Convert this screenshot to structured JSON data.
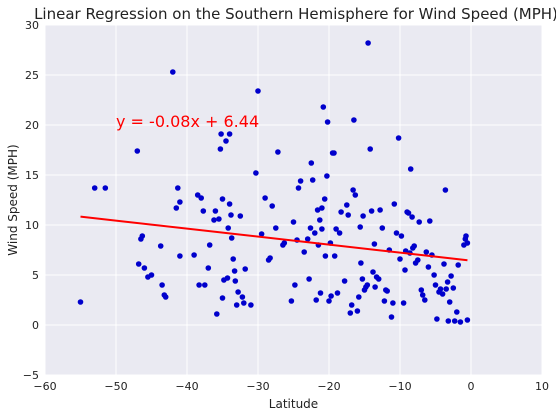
{
  "chart_data": {
    "type": "scatter",
    "title": "Linear Regression on the Southern Hemisphere for Wind Speed (MPH)",
    "xlabel": "Latitude",
    "ylabel": "Wind Speed (MPH)",
    "xlim": [
      -60,
      10
    ],
    "ylim": [
      -5,
      30
    ],
    "xticks": [
      -60,
      -50,
      -40,
      -30,
      -20,
      -10,
      0,
      10
    ],
    "yticks": [
      -5,
      0,
      5,
      10,
      15,
      20,
      25,
      30
    ],
    "grid": true,
    "background": "#EAEAF2",
    "point_color": "#0000CC",
    "line_color": "#FF0000",
    "annotation": {
      "text": "y = -0.08x + 6.44",
      "x": -50,
      "y": 20,
      "color": "#FF0000"
    },
    "regression": {
      "slope": -0.08,
      "intercept": 6.44,
      "x_range": [
        -55,
        -0.5
      ]
    },
    "points": [
      [
        -55,
        2.3
      ],
      [
        -53,
        13.7
      ],
      [
        -51.5,
        13.7
      ],
      [
        -47,
        17.4
      ],
      [
        -46.8,
        6.1
      ],
      [
        -46.5,
        8.6
      ],
      [
        -46.3,
        8.9
      ],
      [
        -46,
        5.7
      ],
      [
        -45.5,
        4.8
      ],
      [
        -45,
        5
      ],
      [
        -43.7,
        7.9
      ],
      [
        -43.5,
        4
      ],
      [
        -43.2,
        3
      ],
      [
        -43,
        2.8
      ],
      [
        -42,
        25.3
      ],
      [
        -41.5,
        11.7
      ],
      [
        -41.3,
        13.7
      ],
      [
        -41,
        12.3
      ],
      [
        -41,
        6.9
      ],
      [
        -39,
        7
      ],
      [
        -38.5,
        13
      ],
      [
        -38.3,
        4
      ],
      [
        -38,
        12.7
      ],
      [
        -37.7,
        11.4
      ],
      [
        -37.5,
        4
      ],
      [
        -37,
        5.7
      ],
      [
        -36.8,
        8
      ],
      [
        -36.2,
        10.5
      ],
      [
        -36,
        11.4
      ],
      [
        -35.8,
        1.1
      ],
      [
        -35.5,
        10.6
      ],
      [
        -35.3,
        17.6
      ],
      [
        -35.2,
        19.1
      ],
      [
        -35,
        12.6
      ],
      [
        -35,
        2.7
      ],
      [
        -34.8,
        4.5
      ],
      [
        -34.5,
        18.4
      ],
      [
        -34.3,
        4.7
      ],
      [
        -34.2,
        9.7
      ],
      [
        -34,
        19.1
      ],
      [
        -34,
        12.1
      ],
      [
        -33.8,
        11
      ],
      [
        -33.7,
        8.7
      ],
      [
        -33.5,
        6.6
      ],
      [
        -33.3,
        5.4
      ],
      [
        -33.2,
        4.4
      ],
      [
        -33,
        2
      ],
      [
        -32.8,
        3.3
      ],
      [
        -32.5,
        10.9
      ],
      [
        -32.2,
        2.8
      ],
      [
        -32,
        2.2
      ],
      [
        -31.8,
        5.6
      ],
      [
        -31,
        2
      ],
      [
        -30.3,
        15.2
      ],
      [
        -30,
        23.4
      ],
      [
        -29.5,
        9.1
      ],
      [
        -29,
        12.7
      ],
      [
        -28.5,
        6.5
      ],
      [
        -28.3,
        6.7
      ],
      [
        -28,
        11.9
      ],
      [
        -27.5,
        9.7
      ],
      [
        -27.2,
        17.3
      ],
      [
        -26.5,
        8
      ],
      [
        -26.3,
        8.2
      ],
      [
        -25.3,
        2.4
      ],
      [
        -25,
        10.3
      ],
      [
        -24.8,
        4
      ],
      [
        -24.5,
        8.5
      ],
      [
        -24.3,
        13.7
      ],
      [
        -24,
        14.4
      ],
      [
        -23.5,
        7.3
      ],
      [
        -23,
        8.6
      ],
      [
        -22.8,
        4.6
      ],
      [
        -22.6,
        9.7
      ],
      [
        -22.5,
        16.2
      ],
      [
        -22.3,
        14.5
      ],
      [
        -22,
        9.2
      ],
      [
        -21.8,
        2.5
      ],
      [
        -21.6,
        11.5
      ],
      [
        -21.5,
        8
      ],
      [
        -21.3,
        10.5
      ],
      [
        -21.2,
        3.2
      ],
      [
        -21,
        11.7
      ],
      [
        -21,
        9.6
      ],
      [
        -20.8,
        21.8
      ],
      [
        -20.6,
        12.6
      ],
      [
        -20.5,
        6.9
      ],
      [
        -20.3,
        14.9
      ],
      [
        -20.2,
        20.3
      ],
      [
        -20,
        2.4
      ],
      [
        -19.8,
        8.2
      ],
      [
        -19.7,
        2.9
      ],
      [
        -19.5,
        17.2
      ],
      [
        -19.3,
        17.2
      ],
      [
        -19.2,
        6.9
      ],
      [
        -19,
        9.6
      ],
      [
        -18.8,
        3.2
      ],
      [
        -18.5,
        9.2
      ],
      [
        -18.3,
        11.3
      ],
      [
        -17.8,
        4.4
      ],
      [
        -17.5,
        12
      ],
      [
        -17.3,
        11
      ],
      [
        -17,
        1.2
      ],
      [
        -16.8,
        2
      ],
      [
        -16.6,
        13.5
      ],
      [
        -16.5,
        20.5
      ],
      [
        -16.3,
        13
      ],
      [
        -16,
        1.4
      ],
      [
        -15.8,
        2.8
      ],
      [
        -15.6,
        9.8
      ],
      [
        -15.5,
        6.2
      ],
      [
        -15.3,
        4.6
      ],
      [
        -15.2,
        10.9
      ],
      [
        -15,
        3.5
      ],
      [
        -14.8,
        3.8
      ],
      [
        -14.6,
        4
      ],
      [
        -14.5,
        28.2
      ],
      [
        -14.2,
        17.6
      ],
      [
        -14,
        11.4
      ],
      [
        -13.8,
        5.3
      ],
      [
        -13.6,
        8.1
      ],
      [
        -13.5,
        3.8
      ],
      [
        -13.3,
        4.8
      ],
      [
        -13,
        4.6
      ],
      [
        -12.8,
        11.5
      ],
      [
        -12.5,
        9.7
      ],
      [
        -12.2,
        2.4
      ],
      [
        -12,
        3.5
      ],
      [
        -11.8,
        3.4
      ],
      [
        -11.5,
        7.5
      ],
      [
        -11.2,
        0.8
      ],
      [
        -11,
        2.2
      ],
      [
        -10.8,
        12.1
      ],
      [
        -10.5,
        9.2
      ],
      [
        -10.2,
        18.7
      ],
      [
        -10,
        6.6
      ],
      [
        -9.8,
        8.9
      ],
      [
        -9.5,
        2.2
      ],
      [
        -9.3,
        5.5
      ],
      [
        -9.2,
        7.4
      ],
      [
        -9,
        11.3
      ],
      [
        -8.8,
        11.2
      ],
      [
        -8.6,
        7.2
      ],
      [
        -8.5,
        15.6
      ],
      [
        -8.3,
        10.8
      ],
      [
        -8.2,
        7.7
      ],
      [
        -8,
        7.9
      ],
      [
        -7.8,
        6.2
      ],
      [
        -7.5,
        6.5
      ],
      [
        -7.3,
        10.3
      ],
      [
        -7,
        3.5
      ],
      [
        -6.8,
        3
      ],
      [
        -6.5,
        2.5
      ],
      [
        -6.3,
        7.3
      ],
      [
        -6,
        5.8
      ],
      [
        -5.8,
        10.4
      ],
      [
        -5.5,
        7
      ],
      [
        -5.2,
        5
      ],
      [
        -5,
        4
      ],
      [
        -4.8,
        0.6
      ],
      [
        -4.5,
        3.3
      ],
      [
        -4.3,
        3.6
      ],
      [
        -4,
        3.1
      ],
      [
        -3.8,
        6.1
      ],
      [
        -3.6,
        13.5
      ],
      [
        -3.5,
        3.6
      ],
      [
        -3.3,
        4.3
      ],
      [
        -3,
        2.3
      ],
      [
        -2.8,
        4.9
      ],
      [
        -2.5,
        3.7
      ],
      [
        -2.3,
        0.4
      ],
      [
        -2,
        1.3
      ],
      [
        -1.8,
        6
      ],
      [
        -1.5,
        0.3
      ],
      [
        -1,
        8
      ],
      [
        -0.8,
        8.6
      ],
      [
        -0.7,
        8.9
      ],
      [
        -0.5,
        8.2
      ],
      [
        -0.5,
        0.5
      ],
      [
        -3.2,
        0.4
      ]
    ]
  }
}
